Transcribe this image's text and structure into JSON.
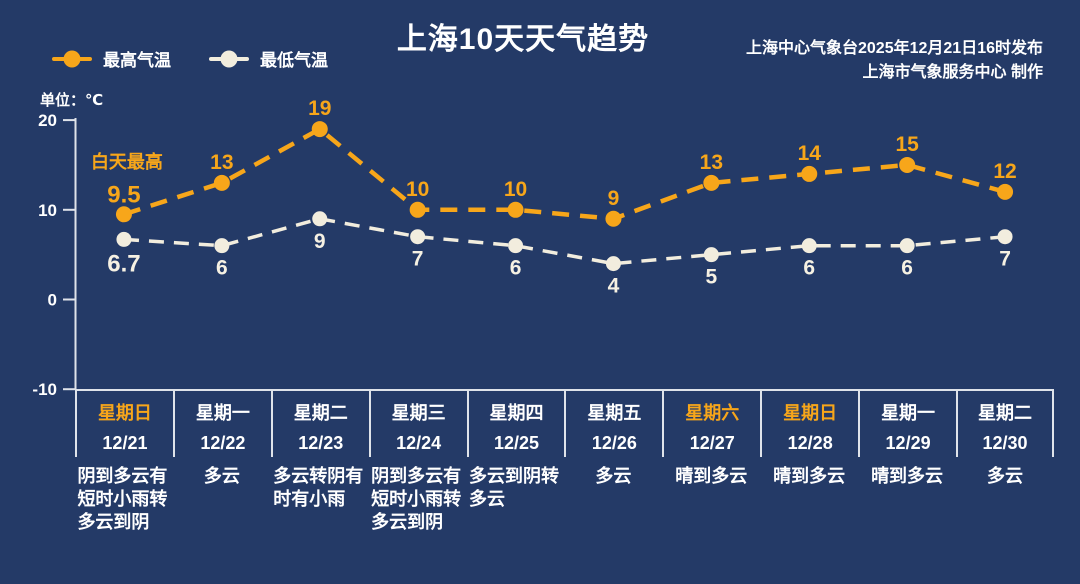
{
  "header": {
    "title": "上海10天天气趋势",
    "source_line1": "上海中心气象台2025年12月21日16时发布",
    "source_line2": "上海市气象服务中心  制作",
    "unit_label": "单位：℃"
  },
  "colors": {
    "background": "#243a67",
    "high_series": "#f7a61a",
    "low_series": "#f2edde",
    "axis_line": "#dfe3ea",
    "text": "#ffffff"
  },
  "legend": [
    {
      "name": "legend-high-temp",
      "label": "最高气温",
      "color": "#f7a61a"
    },
    {
      "name": "legend-low-temp",
      "label": "最低气温",
      "color": "#f2edde"
    }
  ],
  "chart_data": {
    "type": "line",
    "title": "上海10天天气趋势",
    "unit": "℃",
    "annotation": "白天最高",
    "grid": false,
    "legend_position": "top-left",
    "ylim": [
      -10,
      20
    ],
    "yticks": [
      20,
      10,
      0,
      -10
    ],
    "categories": [
      "12/21",
      "12/22",
      "12/23",
      "12/24",
      "12/25",
      "12/26",
      "12/27",
      "12/28",
      "12/29",
      "12/30"
    ],
    "series": [
      {
        "name": "最高气温",
        "color": "#f7a61a",
        "label_color": "#f7a61a",
        "values": [
          9.5,
          13,
          19,
          10,
          10,
          9,
          13,
          14,
          15,
          12
        ]
      },
      {
        "name": "最低气温",
        "color": "#f2edde",
        "label_color": "#f6f1e3",
        "values": [
          6.7,
          6,
          9,
          7,
          6,
          4,
          5,
          6,
          6,
          7
        ]
      }
    ]
  },
  "days": [
    {
      "weekday": "星期日",
      "date": "12/21",
      "weather": "阴到多云有短时小雨转多云到阴",
      "weekend": true
    },
    {
      "weekday": "星期一",
      "date": "12/22",
      "weather": "多云",
      "weekend": false
    },
    {
      "weekday": "星期二",
      "date": "12/23",
      "weather": "多云转阴有时有小雨",
      "weekend": false
    },
    {
      "weekday": "星期三",
      "date": "12/24",
      "weather": "阴到多云有短时小雨转多云到阴",
      "weekend": false
    },
    {
      "weekday": "星期四",
      "date": "12/25",
      "weather": "多云到阴转多云",
      "weekend": false
    },
    {
      "weekday": "星期五",
      "date": "12/26",
      "weather": "多云",
      "weekend": false
    },
    {
      "weekday": "星期六",
      "date": "12/27",
      "weather": "晴到多云",
      "weekend": true
    },
    {
      "weekday": "星期日",
      "date": "12/28",
      "weather": "晴到多云",
      "weekend": true
    },
    {
      "weekday": "星期一",
      "date": "12/29",
      "weather": "晴到多云",
      "weekend": false
    },
    {
      "weekday": "星期二",
      "date": "12/30",
      "weather": "多云",
      "weekend": false
    }
  ]
}
